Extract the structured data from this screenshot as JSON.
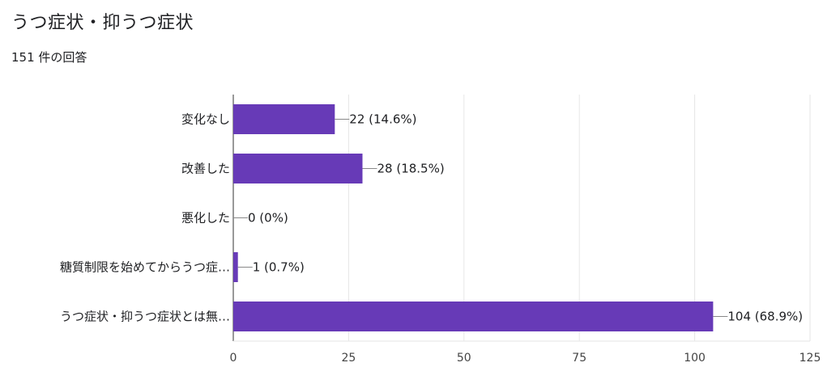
{
  "title": "うつ症状・抑うつ症状",
  "response_count": "151 件の回答",
  "chart_data": {
    "type": "bar",
    "orientation": "horizontal",
    "categories": [
      "変化なし",
      "改善した",
      "悪化した",
      "糖質制限を始めてからうつ症…",
      "うつ症状・抑うつ症状とは無…"
    ],
    "values": [
      22,
      28,
      0,
      1,
      104
    ],
    "value_labels": [
      "22 (14.6%)",
      "28 (18.5%)",
      "0 (0%)",
      "1 (0.7%)",
      "104 (68.9%)"
    ],
    "xlim": [
      0,
      125
    ],
    "xticks": [
      0,
      25,
      50,
      75,
      100,
      125
    ],
    "grid": true,
    "bar_color": "#673ab7"
  }
}
